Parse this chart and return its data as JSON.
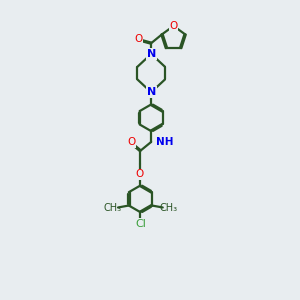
{
  "bg_color": "#e8edf0",
  "bond_color": "#2a5425",
  "nitrogen_color": "#0000ee",
  "oxygen_color": "#ee0000",
  "chlorine_color": "#3a9e3a",
  "line_width": 1.6,
  "dbo": 0.035,
  "xlim": [
    0,
    10
  ],
  "ylim": [
    0,
    15
  ]
}
